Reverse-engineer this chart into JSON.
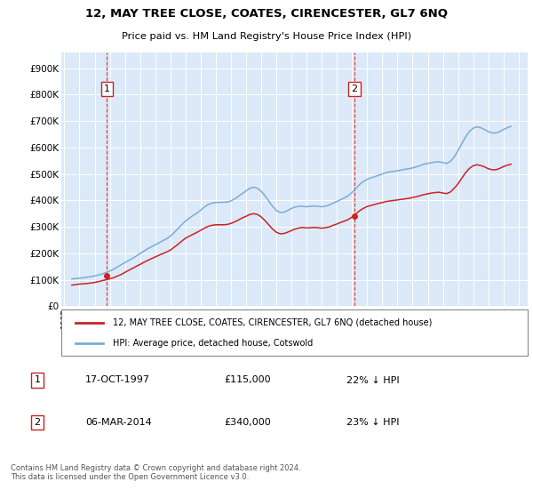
{
  "title": "12, MAY TREE CLOSE, COATES, CIRENCESTER, GL7 6NQ",
  "subtitle": "Price paid vs. HM Land Registry's House Price Index (HPI)",
  "background_color": "#ffffff",
  "plot_bg_color": "#dce9f8",
  "yticks": [
    0,
    100000,
    200000,
    300000,
    400000,
    500000,
    600000,
    700000,
    800000,
    900000
  ],
  "ytick_labels": [
    "£0",
    "£100K",
    "£200K",
    "£300K",
    "£400K",
    "£500K",
    "£600K",
    "£700K",
    "£800K",
    "£900K"
  ],
  "ylim": [
    0,
    960000
  ],
  "xlim_start": 1994.8,
  "xlim_end": 2025.6,
  "xticks": [
    1995,
    1996,
    1997,
    1998,
    1999,
    2000,
    2001,
    2002,
    2003,
    2004,
    2005,
    2006,
    2007,
    2008,
    2009,
    2010,
    2011,
    2012,
    2013,
    2014,
    2015,
    2016,
    2017,
    2018,
    2019,
    2020,
    2021,
    2022,
    2023,
    2024,
    2025
  ],
  "hpi_color": "#7aadd4",
  "price_color": "#cc2222",
  "sale1_x": 1997.8,
  "sale1_y": 115000,
  "sale1_label": "1",
  "sale2_x": 2014.17,
  "sale2_y": 340000,
  "sale2_label": "2",
  "legend_line1": "12, MAY TREE CLOSE, COATES, CIRENCESTER, GL7 6NQ (detached house)",
  "legend_line2": "HPI: Average price, detached house, Cotswold",
  "table_rows": [
    {
      "num": "1",
      "date": "17-OCT-1997",
      "price": "£115,000",
      "hpi": "22% ↓ HPI"
    },
    {
      "num": "2",
      "date": "06-MAR-2014",
      "price": "£340,000",
      "hpi": "23% ↓ HPI"
    }
  ],
  "footer": "Contains HM Land Registry data © Crown copyright and database right 2024.\nThis data is licensed under the Open Government Licence v3.0.",
  "hpi_data_x": [
    1995.5,
    1995.75,
    1996.0,
    1996.25,
    1996.5,
    1996.75,
    1997.0,
    1997.25,
    1997.5,
    1997.75,
    1998.0,
    1998.25,
    1998.5,
    1998.75,
    1999.0,
    1999.25,
    1999.5,
    1999.75,
    2000.0,
    2000.25,
    2000.5,
    2000.75,
    2001.0,
    2001.25,
    2001.5,
    2001.75,
    2002.0,
    2002.25,
    2002.5,
    2002.75,
    2003.0,
    2003.25,
    2003.5,
    2003.75,
    2004.0,
    2004.25,
    2004.5,
    2004.75,
    2005.0,
    2005.25,
    2005.5,
    2005.75,
    2006.0,
    2006.25,
    2006.5,
    2006.75,
    2007.0,
    2007.25,
    2007.5,
    2007.75,
    2008.0,
    2008.25,
    2008.5,
    2008.75,
    2009.0,
    2009.25,
    2009.5,
    2009.75,
    2010.0,
    2010.25,
    2010.5,
    2010.75,
    2011.0,
    2011.25,
    2011.5,
    2011.75,
    2012.0,
    2012.25,
    2012.5,
    2012.75,
    2013.0,
    2013.25,
    2013.5,
    2013.75,
    2014.0,
    2014.25,
    2014.5,
    2014.75,
    2015.0,
    2015.25,
    2015.5,
    2015.75,
    2016.0,
    2016.25,
    2016.5,
    2016.75,
    2017.0,
    2017.25,
    2017.5,
    2017.75,
    2018.0,
    2018.25,
    2018.5,
    2018.75,
    2019.0,
    2019.25,
    2019.5,
    2019.75,
    2020.0,
    2020.25,
    2020.5,
    2020.75,
    2021.0,
    2021.25,
    2021.5,
    2021.75,
    2022.0,
    2022.25,
    2022.5,
    2022.75,
    2023.0,
    2023.25,
    2023.5,
    2023.75,
    2024.0,
    2024.25,
    2024.5
  ],
  "hpi_data_y": [
    103000,
    105000,
    106000,
    108000,
    110000,
    112000,
    115000,
    118000,
    122000,
    127000,
    133000,
    140000,
    148000,
    157000,
    165000,
    173000,
    181000,
    190000,
    199000,
    208000,
    217000,
    225000,
    232000,
    240000,
    248000,
    255000,
    265000,
    278000,
    293000,
    308000,
    322000,
    333000,
    343000,
    352000,
    363000,
    375000,
    385000,
    390000,
    392000,
    393000,
    393000,
    394000,
    398000,
    406000,
    416000,
    426000,
    436000,
    446000,
    450000,
    446000,
    435000,
    418000,
    398000,
    378000,
    362000,
    355000,
    355000,
    362000,
    370000,
    375000,
    378000,
    378000,
    376000,
    378000,
    379000,
    378000,
    376000,
    378000,
    383000,
    390000,
    396000,
    403000,
    410000,
    418000,
    430000,
    445000,
    460000,
    472000,
    480000,
    485000,
    490000,
    495000,
    500000,
    505000,
    508000,
    510000,
    512000,
    515000,
    518000,
    520000,
    523000,
    527000,
    532000,
    537000,
    540000,
    543000,
    545000,
    546000,
    543000,
    540000,
    548000,
    565000,
    588000,
    615000,
    640000,
    660000,
    673000,
    678000,
    675000,
    668000,
    660000,
    655000,
    655000,
    660000,
    668000,
    675000,
    680000
  ],
  "price_data_x": [
    1995.5,
    1995.75,
    1996.0,
    1996.25,
    1996.5,
    1996.75,
    1997.0,
    1997.25,
    1997.5,
    1997.75,
    1998.0,
    1998.25,
    1998.5,
    1998.75,
    1999.0,
    1999.25,
    1999.5,
    1999.75,
    2000.0,
    2000.25,
    2000.5,
    2000.75,
    2001.0,
    2001.25,
    2001.5,
    2001.75,
    2002.0,
    2002.25,
    2002.5,
    2002.75,
    2003.0,
    2003.25,
    2003.5,
    2003.75,
    2004.0,
    2004.25,
    2004.5,
    2004.75,
    2005.0,
    2005.25,
    2005.5,
    2005.75,
    2006.0,
    2006.25,
    2006.5,
    2006.75,
    2007.0,
    2007.25,
    2007.5,
    2007.75,
    2008.0,
    2008.25,
    2008.5,
    2008.75,
    2009.0,
    2009.25,
    2009.5,
    2009.75,
    2010.0,
    2010.25,
    2010.5,
    2010.75,
    2011.0,
    2011.25,
    2011.5,
    2011.75,
    2012.0,
    2012.25,
    2012.5,
    2012.75,
    2013.0,
    2013.25,
    2013.5,
    2013.75,
    2014.0,
    2014.25,
    2014.5,
    2014.75,
    2015.0,
    2015.25,
    2015.5,
    2015.75,
    2016.0,
    2016.25,
    2016.5,
    2016.75,
    2017.0,
    2017.25,
    2017.5,
    2017.75,
    2018.0,
    2018.25,
    2018.5,
    2018.75,
    2019.0,
    2019.25,
    2019.5,
    2019.75,
    2020.0,
    2020.25,
    2020.5,
    2020.75,
    2021.0,
    2021.25,
    2021.5,
    2021.75,
    2022.0,
    2022.25,
    2022.5,
    2022.75,
    2023.0,
    2023.25,
    2023.5,
    2023.75,
    2024.0,
    2024.25,
    2024.5
  ],
  "price_data_y": [
    80000,
    82000,
    84000,
    85000,
    86000,
    88000,
    90000,
    93000,
    97000,
    100000,
    104000,
    108000,
    114000,
    120000,
    128000,
    136000,
    143000,
    151000,
    158000,
    166000,
    173000,
    180000,
    186000,
    193000,
    199000,
    205000,
    212000,
    223000,
    234000,
    246000,
    257000,
    265000,
    272000,
    279000,
    287000,
    295000,
    302000,
    306000,
    308000,
    308000,
    308000,
    309000,
    313000,
    319000,
    326000,
    334000,
    340000,
    347000,
    350000,
    347000,
    338000,
    324000,
    308000,
    292000,
    280000,
    274000,
    275000,
    280000,
    286000,
    292000,
    296000,
    298000,
    296000,
    297000,
    298000,
    297000,
    295000,
    297000,
    300000,
    306000,
    311000,
    317000,
    322000,
    328000,
    337000,
    349000,
    361000,
    370000,
    377000,
    381000,
    385000,
    389000,
    392000,
    396000,
    398000,
    400000,
    402000,
    404000,
    406000,
    408000,
    411000,
    414000,
    418000,
    422000,
    425000,
    428000,
    430000,
    431000,
    428000,
    426000,
    432000,
    446000,
    463000,
    484000,
    505000,
    521000,
    531000,
    535000,
    532000,
    527000,
    520000,
    516000,
    516000,
    521000,
    528000,
    533000,
    537000
  ]
}
